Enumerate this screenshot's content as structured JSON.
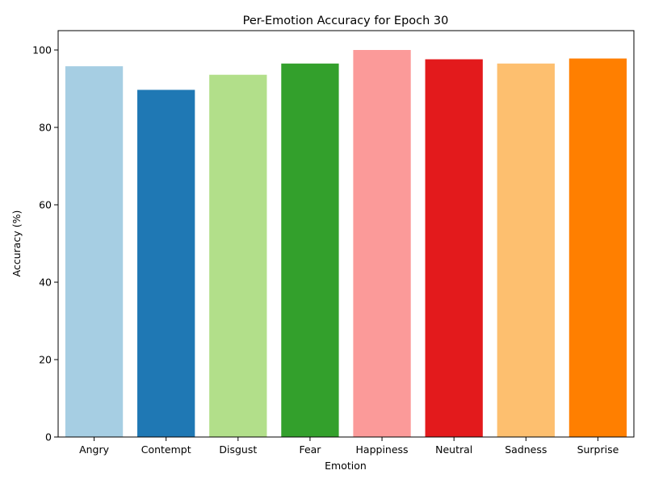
{
  "chart_data": {
    "type": "bar",
    "title": "Per-Emotion Accuracy for Epoch 30",
    "xlabel": "Emotion",
    "ylabel": "Accuracy (%)",
    "categories": [
      "Angry",
      "Contempt",
      "Disgust",
      "Fear",
      "Happiness",
      "Neutral",
      "Sadness",
      "Surprise"
    ],
    "values": [
      95.8,
      89.7,
      93.6,
      96.5,
      100.0,
      97.6,
      96.5,
      97.8
    ],
    "colors": [
      "#a6cee3",
      "#1f78b4",
      "#b2df8a",
      "#33a02c",
      "#fb9a99",
      "#e31a1c",
      "#fdbf6f",
      "#ff7f00"
    ],
    "ylim": [
      0,
      105
    ],
    "yticks": [
      0,
      20,
      40,
      60,
      80,
      100
    ],
    "grid": false,
    "legend": "none"
  }
}
